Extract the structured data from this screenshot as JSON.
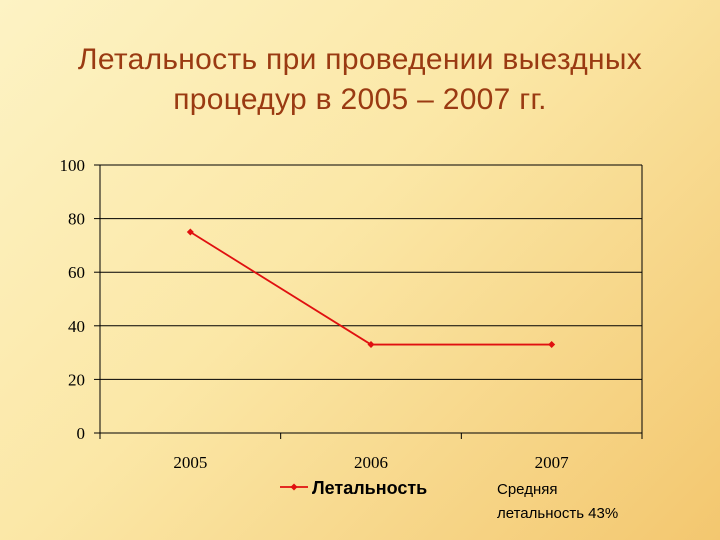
{
  "page": {
    "title_line1": "Летальность при проведении выездных",
    "title_line2": "процедур в 2005 – 2007 гг.",
    "note_line1": "Средняя",
    "note_line2": "летальность 43%"
  },
  "chart_data": {
    "type": "line",
    "categories": [
      "2005",
      "2006",
      "2007"
    ],
    "series": [
      {
        "name": "Летальность",
        "values": [
          75,
          33,
          33
        ],
        "color": "#e01010"
      }
    ],
    "ylim": [
      0,
      100
    ],
    "yticks": [
      0,
      20,
      40,
      60,
      80,
      100
    ],
    "grid": true,
    "legend": "bottom"
  }
}
